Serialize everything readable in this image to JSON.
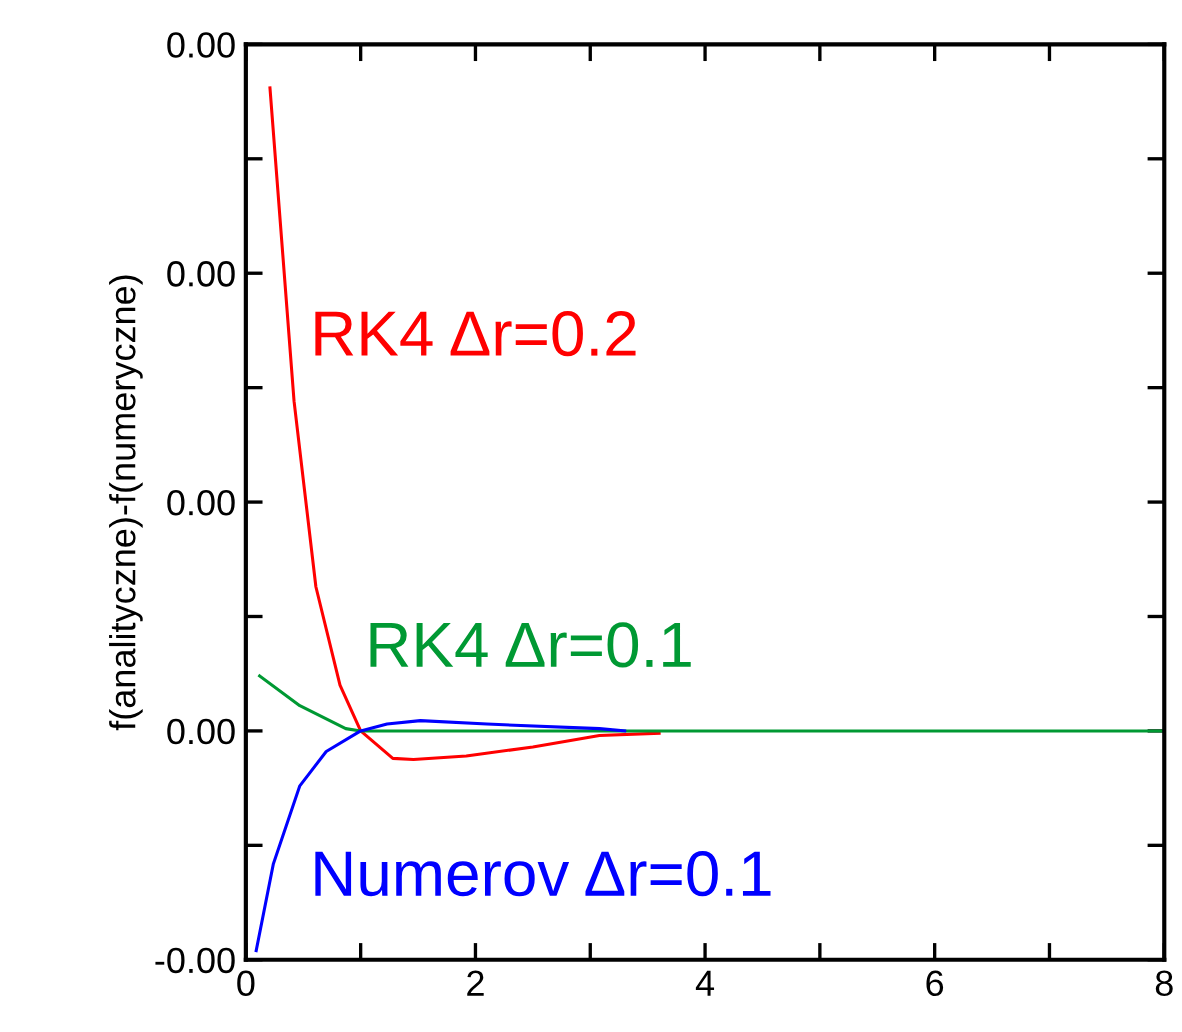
{
  "chart_data": {
    "type": "line",
    "ylabel": "f(analityczne)-f(numeryczne)",
    "xlim": [
      0,
      8
    ],
    "xticks": [
      0,
      {
        "value": 1,
        "label": null
      },
      2,
      {
        "value": 3,
        "label": null
      },
      4,
      {
        "value": 5,
        "label": null
      },
      6,
      {
        "value": 7,
        "label": null
      },
      8
    ],
    "ylim": [
      -0.001,
      0.003
    ],
    "yticks": [
      {
        "value": -0.001,
        "label": "-0.00"
      },
      {
        "value": -0.0005,
        "label": null
      },
      {
        "value": 0,
        "label": "0.00"
      },
      {
        "value": 0.0005,
        "label": null
      },
      {
        "value": 0.001,
        "label": "0.00"
      },
      {
        "value": 0.0015,
        "label": null
      },
      {
        "value": 0.002,
        "label": "0.00"
      },
      {
        "value": 0.0025,
        "label": null
      },
      {
        "value": 0.003,
        "label": "0.00"
      }
    ],
    "grid": false,
    "legend": false,
    "marker": "none",
    "line_style": "solid",
    "series": [
      {
        "name": "RK4 Δr=0.2",
        "color": "#ff0000",
        "x": [
          0.21,
          0.42,
          0.61,
          0.82,
          1.0,
          1.28,
          1.46,
          1.92,
          2.5,
          3.08,
          3.6
        ],
        "values": [
          0.00281,
          0.00144,
          0.00063,
          0.0002,
          0,
          -0.00012,
          -0.000125,
          -0.00011,
          -7e-05,
          -2e-05,
          -1e-05
        ]
      },
      {
        "name": "RK4 Δr=0.1",
        "color": "#009933",
        "x": [
          0.12,
          0.47,
          0.87,
          1.0,
          2,
          4,
          6,
          8
        ],
        "values": [
          0.00024,
          0.00011,
          1e-05,
          0,
          0,
          0,
          0,
          0
        ]
      },
      {
        "name": "Numerov Δr=0.1",
        "color": "#0000ff",
        "x": [
          0.09,
          0.24,
          0.47,
          0.7,
          1.0,
          1.23,
          1.52,
          2.1,
          3.08,
          3.3
        ],
        "values": [
          -0.00096,
          -0.00058,
          -0.00024,
          -9e-05,
          0,
          3e-05,
          4.5e-05,
          3e-05,
          1e-05,
          0
        ]
      }
    ]
  }
}
